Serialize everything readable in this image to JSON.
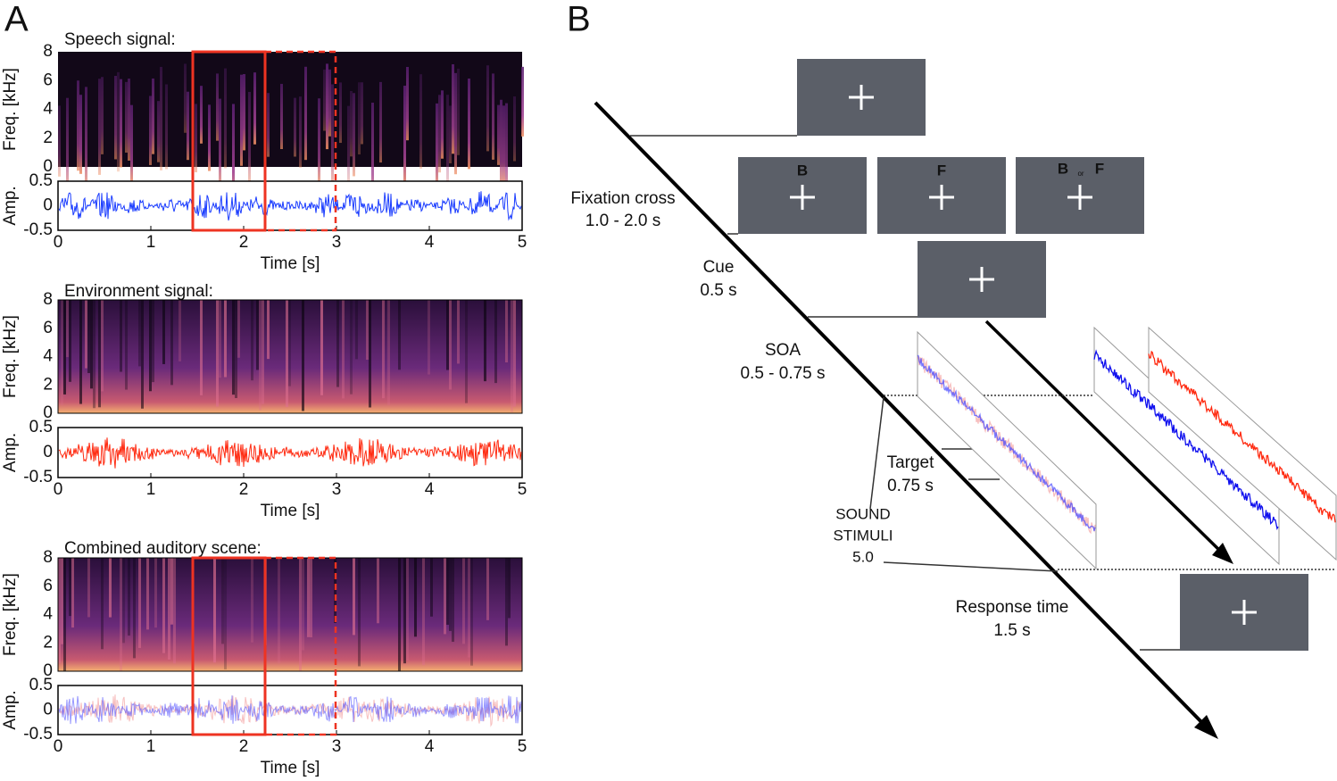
{
  "panel_a": {
    "label": "A",
    "panels": [
      {
        "title": "Speech signal:"
      },
      {
        "title": "Environment signal:"
      },
      {
        "title": "Combined auditory scene:"
      }
    ],
    "freq_axis": {
      "label": "Freq. [kHz]",
      "ticks": [
        0,
        2,
        4,
        6,
        8
      ]
    },
    "amp_axis": {
      "label": "Amp.",
      "ticks": [
        0.5,
        0,
        -0.5
      ]
    },
    "time_axis": {
      "label": "Time [s]",
      "ticks": [
        0,
        1,
        2,
        3,
        4,
        5
      ]
    }
  },
  "panel_b": {
    "label": "B",
    "cue_letters": {
      "first": "B",
      "second": "F",
      "third_left": "B",
      "third_mid": "or",
      "third_right": "F"
    },
    "stages": [
      {
        "name": "Fixation cross",
        "duration": "1.0 - 2.0 s"
      },
      {
        "name": "Cue",
        "duration": "0.5 s"
      },
      {
        "name": "SOA",
        "duration": "0.5 - 0.75 s"
      },
      {
        "name": "Target",
        "duration": "0.75 s"
      },
      {
        "name": "Response time",
        "duration": "1.5 s"
      }
    ],
    "sound_stimuli": {
      "line1": "SOUND",
      "line2": "STIMULI",
      "line3": "5.0"
    }
  }
}
